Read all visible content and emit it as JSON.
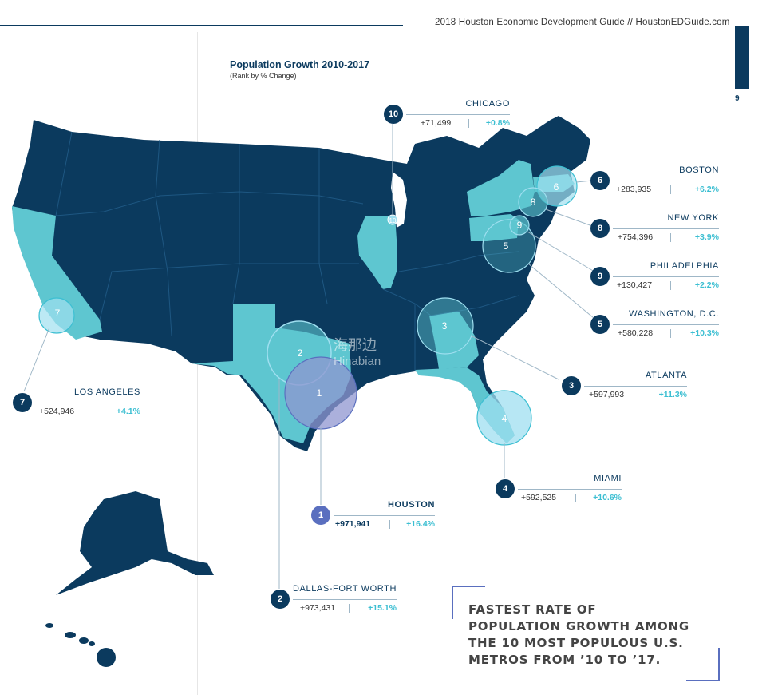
{
  "header": {
    "guide_title": "2018 Houston Economic Development Guide // HoustonEDGuide.com",
    "page_number": "9"
  },
  "map": {
    "title": "Population Growth 2010-2017",
    "subtitle": "(Rank by % Change)",
    "colors": {
      "base_states": "#0b3a5e",
      "highlight_states": "#5ec6d0",
      "houston_circle": "#8f96d0",
      "metro_circle": "#9fdff0",
      "badge": "#0b3a5e",
      "badge_houston": "#5a6fbf",
      "percent_text": "#3dbfd2"
    }
  },
  "metros": [
    {
      "rank": "1",
      "city": "HOUSTON",
      "gain": "+971,941",
      "pct": "+16.4%"
    },
    {
      "rank": "2",
      "city": "DALLAS-FORT WORTH",
      "gain": "+973,431",
      "pct": "+15.1%"
    },
    {
      "rank": "3",
      "city": "ATLANTA",
      "gain": "+597,993",
      "pct": "+11.3%"
    },
    {
      "rank": "4",
      "city": "MIAMI",
      "gain": "+592,525",
      "pct": "+10.6%"
    },
    {
      "rank": "5",
      "city": "WASHINGTON, D.C.",
      "gain": "+580,228",
      "pct": "+10.3%"
    },
    {
      "rank": "6",
      "city": "BOSTON",
      "gain": "+283,935",
      "pct": "+6.2%"
    },
    {
      "rank": "7",
      "city": "LOS ANGELES",
      "gain": "+524,946",
      "pct": "+4.1%"
    },
    {
      "rank": "8",
      "city": "NEW YORK",
      "gain": "+754,396",
      "pct": "+3.9%"
    },
    {
      "rank": "9",
      "city": "PHILADELPHIA",
      "gain": "+130,427",
      "pct": "+2.2%"
    },
    {
      "rank": "10",
      "city": "CHICAGO",
      "gain": "+71,499",
      "pct": "+0.8%"
    }
  ],
  "headline": {
    "lines": [
      "FASTEST RATE OF",
      "POPULATION GROWTH AMONG",
      "THE 10 MOST POPULOUS U.S.",
      "METROS FROM ’10 TO ’17."
    ]
  },
  "watermark": {
    "cn": "海那边",
    "en": "Hinabian"
  }
}
